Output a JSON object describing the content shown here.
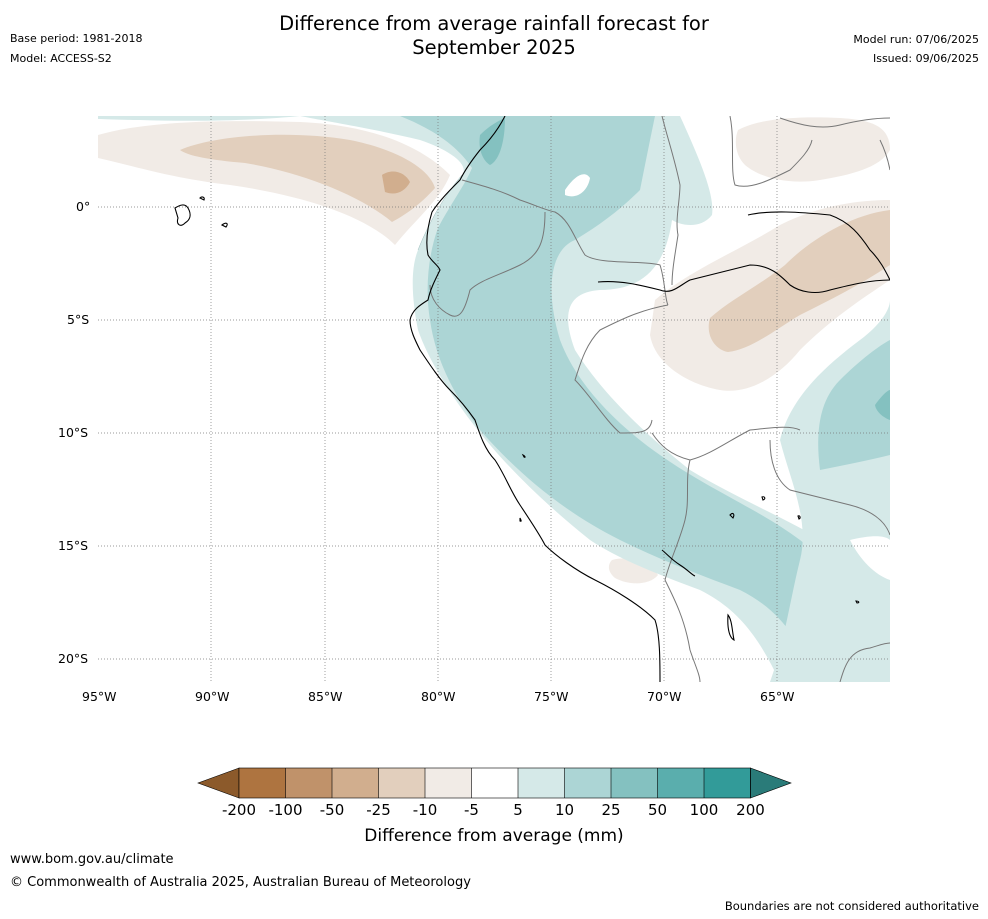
{
  "header": {
    "base_period": "Base period: 1981-2018",
    "model": "Model: ACCESS-S2",
    "title_line1": "Difference from average rainfall forecast for",
    "title_line2": "September 2025",
    "model_run": "Model run: 07/06/2025",
    "issued": "Issued: 09/06/2025"
  },
  "map": {
    "lat_labels": [
      "0°",
      "5°S",
      "10°S",
      "15°S",
      "20°S"
    ],
    "lon_labels": [
      "95°W",
      "90°W",
      "85°W",
      "80°W",
      "75°W",
      "70°W",
      "65°W"
    ],
    "extent": {
      "lon_min": -95,
      "lon_max": -60,
      "lat_min": -21,
      "lat_max": 4
    }
  },
  "legend": {
    "title": "Difference from average (mm)",
    "ticks": [
      "-200",
      "-100",
      "-50",
      "-25",
      "-10",
      "-5",
      "5",
      "10",
      "25",
      "50",
      "100",
      "200"
    ],
    "colors": [
      "#8c5a2b",
      "#ae7440",
      "#c0926a",
      "#d1ae8e",
      "#e2cfbd",
      "#f1ebe6",
      "#ffffff",
      "#d5e9e8",
      "#acd5d5",
      "#84c1c0",
      "#5aaead",
      "#329b99",
      "#2a7b79"
    ]
  },
  "footer": {
    "url": "www.bom.gov.au/climate",
    "copyright": "© Commonwealth of Australia 2025, Australian Bureau of Meteorology",
    "disclaimer": "Boundaries are not considered authoritative"
  }
}
